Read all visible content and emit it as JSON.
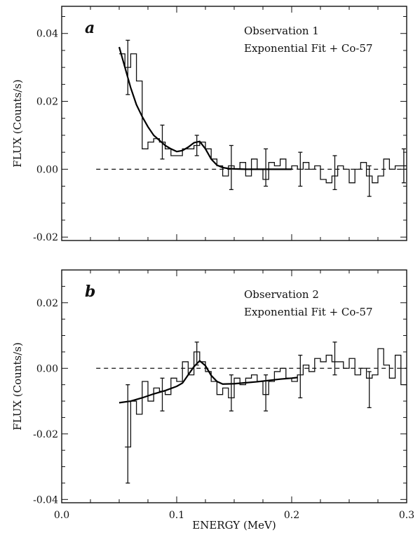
{
  "chart_data": [
    {
      "type": "line",
      "panel": "a",
      "annotation_lines": [
        "Observation 1",
        "Exponential Fit + Co-57"
      ],
      "ylabel": "FLUX (Counts/s)",
      "xlim": [
        0.0,
        0.3
      ],
      "ylim": [
        -0.021,
        0.048
      ],
      "yticks": [
        -0.02,
        0.0,
        0.02,
        0.04
      ],
      "ytick_labels": [
        "-0.02",
        "0.00",
        "0.02",
        "0.04"
      ],
      "xticks": [
        0.0,
        0.1,
        0.2,
        0.3
      ],
      "xtick_labels": [
        "",
        "",
        "",
        ""
      ],
      "baseline": {
        "y": 0.0,
        "x": [
          0.03,
          0.3
        ]
      },
      "series": [
        {
          "kind": "step",
          "x_edges": [
            0.05,
            0.055,
            0.06,
            0.065,
            0.07,
            0.075,
            0.08,
            0.085,
            0.09,
            0.095,
            0.1,
            0.105,
            0.11,
            0.115,
            0.12,
            0.125,
            0.13,
            0.135,
            0.14,
            0.145,
            0.15,
            0.155,
            0.16,
            0.165,
            0.17,
            0.175,
            0.18,
            0.185,
            0.19,
            0.195,
            0.2,
            0.205,
            0.21,
            0.215,
            0.22,
            0.225,
            0.23,
            0.235,
            0.24,
            0.245,
            0.25,
            0.255,
            0.26,
            0.265,
            0.27,
            0.275,
            0.28,
            0.285,
            0.29,
            0.295,
            0.3
          ],
          "y": [
            0.034,
            0.03,
            0.034,
            0.026,
            0.006,
            0.008,
            0.009,
            0.008,
            0.006,
            0.004,
            0.004,
            0.006,
            0.006,
            0.007,
            0.008,
            0.006,
            0.003,
            0.001,
            -0.002,
            0.001,
            0.0,
            0.002,
            -0.002,
            0.003,
            0.0,
            -0.003,
            0.002,
            0.001,
            0.003,
            0.0,
            0.001,
            0.0,
            0.002,
            0.0,
            0.001,
            -0.003,
            -0.004,
            -0.002,
            0.001,
            0.0,
            -0.004,
            0.0,
            0.002,
            -0.002,
            -0.004,
            -0.002,
            0.003,
            0.0,
            0.001,
            0.001
          ]
        },
        {
          "kind": "fit",
          "x": [
            0.05,
            0.055,
            0.06,
            0.065,
            0.07,
            0.075,
            0.08,
            0.085,
            0.09,
            0.095,
            0.1,
            0.105,
            0.11,
            0.115,
            0.12,
            0.125,
            0.13,
            0.135,
            0.14,
            0.145,
            0.15,
            0.16,
            0.17,
            0.18,
            0.19,
            0.2
          ],
          "y": [
            0.036,
            0.03,
            0.024,
            0.019,
            0.0155,
            0.0125,
            0.01,
            0.0085,
            0.007,
            0.006,
            0.0052,
            0.0055,
            0.0065,
            0.0078,
            0.0082,
            0.006,
            0.003,
            0.0012,
            0.0005,
            0.0002,
            0.0001,
            0.0,
            0.0,
            0.0,
            0.0,
            0.0
          ]
        }
      ],
      "error_bars": [
        {
          "x": 0.0575,
          "y": 0.03,
          "lo": 0.022,
          "hi": 0.038
        },
        {
          "x": 0.0875,
          "y": 0.008,
          "lo": 0.003,
          "hi": 0.013
        },
        {
          "x": 0.1175,
          "y": 0.007,
          "lo": 0.004,
          "hi": 0.01
        },
        {
          "x": 0.1475,
          "y": 0.001,
          "lo": -0.006,
          "hi": 0.007
        },
        {
          "x": 0.1775,
          "y": 0.002,
          "lo": -0.005,
          "hi": 0.006
        },
        {
          "x": 0.2075,
          "y": 0.001,
          "lo": -0.005,
          "hi": 0.005
        },
        {
          "x": 0.2375,
          "y": -0.002,
          "lo": -0.006,
          "hi": 0.004
        },
        {
          "x": 0.2675,
          "y": -0.003,
          "lo": -0.008,
          "hi": 0.001
        },
        {
          "x": 0.2975,
          "y": 0.001,
          "lo": -0.004,
          "hi": 0.006
        }
      ]
    },
    {
      "type": "line",
      "panel": "b",
      "annotation_lines": [
        "Observation 2",
        "Exponential Fit + Co-57"
      ],
      "ylabel": "FLUX (Counts/s)",
      "xlabel": "ENERGY (MeV)",
      "xlim": [
        0.0,
        0.3
      ],
      "ylim": [
        -0.041,
        0.03
      ],
      "yticks": [
        -0.04,
        -0.02,
        0.0,
        0.02
      ],
      "ytick_labels": [
        "-0.04",
        "-0.02",
        "0.00",
        "0.02"
      ],
      "xticks": [
        0.0,
        0.1,
        0.2,
        0.3
      ],
      "xtick_labels": [
        "0.0",
        "0.1",
        "0.2",
        "0.3"
      ],
      "baseline": {
        "y": 0.0,
        "x": [
          0.03,
          0.3
        ]
      },
      "series": [
        {
          "kind": "step",
          "x_edges": [
            0.055,
            0.06,
            0.065,
            0.07,
            0.075,
            0.08,
            0.085,
            0.09,
            0.095,
            0.1,
            0.105,
            0.11,
            0.115,
            0.12,
            0.125,
            0.13,
            0.135,
            0.14,
            0.145,
            0.15,
            0.155,
            0.16,
            0.165,
            0.17,
            0.175,
            0.18,
            0.185,
            0.19,
            0.195,
            0.2,
            0.205,
            0.21,
            0.215,
            0.22,
            0.225,
            0.23,
            0.235,
            0.24,
            0.245,
            0.25,
            0.255,
            0.26,
            0.265,
            0.27,
            0.275,
            0.28,
            0.285,
            0.29,
            0.295,
            0.3
          ],
          "y": [
            -0.024,
            -0.01,
            -0.014,
            -0.004,
            -0.01,
            -0.006,
            -0.007,
            -0.008,
            -0.003,
            -0.004,
            0.002,
            -0.002,
            0.005,
            0.002,
            -0.001,
            -0.004,
            -0.008,
            -0.006,
            -0.009,
            -0.003,
            -0.005,
            -0.003,
            -0.002,
            -0.004,
            -0.008,
            -0.004,
            -0.001,
            0.0,
            -0.003,
            -0.004,
            -0.002,
            0.001,
            -0.001,
            0.003,
            0.002,
            0.004,
            0.002,
            0.002,
            0.0,
            0.003,
            -0.002,
            0.0,
            -0.003,
            -0.002,
            0.006,
            0.001,
            -0.003,
            0.004,
            -0.005
          ]
        },
        {
          "kind": "fit",
          "x": [
            0.05,
            0.06,
            0.07,
            0.08,
            0.09,
            0.1,
            0.105,
            0.11,
            0.115,
            0.12,
            0.125,
            0.13,
            0.135,
            0.14,
            0.15,
            0.16,
            0.17,
            0.18,
            0.19,
            0.2,
            0.205
          ],
          "y": [
            -0.0105,
            -0.01,
            -0.009,
            -0.0078,
            -0.0068,
            -0.0055,
            -0.0045,
            -0.002,
            0.0005,
            0.0023,
            0.0008,
            -0.0022,
            -0.004,
            -0.0048,
            -0.0047,
            -0.0044,
            -0.0041,
            -0.0037,
            -0.0033,
            -0.003,
            -0.0028
          ]
        }
      ],
      "error_bars": [
        {
          "x": 0.0575,
          "y": -0.024,
          "lo": -0.035,
          "hi": -0.005
        },
        {
          "x": 0.0875,
          "y": -0.007,
          "lo": -0.013,
          "hi": -0.003
        },
        {
          "x": 0.1175,
          "y": 0.005,
          "lo": 0.001,
          "hi": 0.008
        },
        {
          "x": 0.1475,
          "y": -0.007,
          "lo": -0.013,
          "hi": -0.002
        },
        {
          "x": 0.1775,
          "y": -0.008,
          "lo": -0.013,
          "hi": -0.002
        },
        {
          "x": 0.2075,
          "y": -0.002,
          "lo": -0.009,
          "hi": 0.004
        },
        {
          "x": 0.2375,
          "y": 0.002,
          "lo": -0.002,
          "hi": 0.008
        },
        {
          "x": 0.2675,
          "y": -0.003,
          "lo": -0.012,
          "hi": -0.001
        }
      ]
    }
  ]
}
